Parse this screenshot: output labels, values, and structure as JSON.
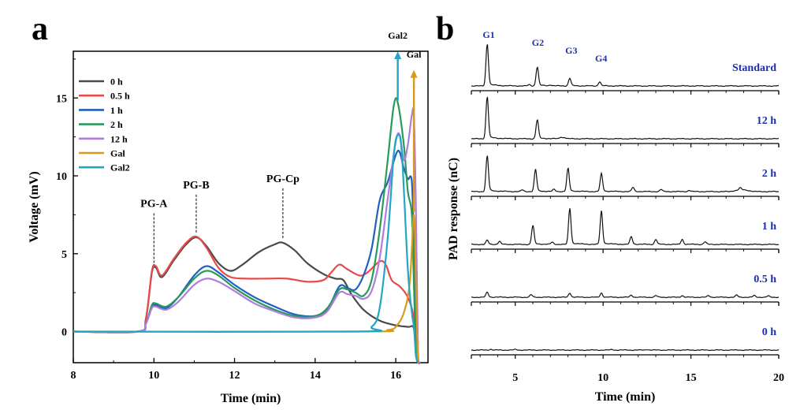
{
  "panel_a_letter": "a",
  "panel_b_letter": "b",
  "chart_data": [
    {
      "type": "line",
      "xlabel": "Time (min)",
      "ylabel": "Voltage (mV)",
      "xlim": [
        8,
        16.8
      ],
      "ylim": [
        -2,
        18
      ],
      "xticks": [
        8,
        10,
        12,
        14,
        16
      ],
      "yticks": [
        0,
        5,
        10,
        15
      ],
      "grid": false,
      "legend_position": "top-left",
      "series": [
        {
          "name": "0 h",
          "color": "#4a4a4a",
          "points": [
            [
              8,
              0
            ],
            [
              9.6,
              0
            ],
            [
              9.8,
              0.8
            ],
            [
              9.95,
              3.8
            ],
            [
              10.05,
              4.1
            ],
            [
              10.2,
              3.5
            ],
            [
              10.5,
              4.6
            ],
            [
              10.8,
              5.6
            ],
            [
              11.05,
              6.05
            ],
            [
              11.3,
              5.5
            ],
            [
              11.6,
              4.4
            ],
            [
              11.9,
              3.9
            ],
            [
              12.2,
              4.3
            ],
            [
              12.6,
              5.1
            ],
            [
              13.0,
              5.6
            ],
            [
              13.2,
              5.7
            ],
            [
              13.5,
              5.2
            ],
            [
              13.8,
              4.4
            ],
            [
              14.2,
              3.7
            ],
            [
              14.5,
              3.4
            ],
            [
              14.7,
              3.3
            ],
            [
              14.9,
              2.4
            ],
            [
              15.2,
              1.4
            ],
            [
              15.6,
              0.7
            ],
            [
              16.0,
              0.4
            ],
            [
              16.3,
              0.3
            ],
            [
              16.45,
              0.2
            ],
            [
              16.5,
              -1.5
            ],
            [
              16.55,
              -2
            ]
          ]
        },
        {
          "name": "0.5 h",
          "color": "#e74a4a",
          "points": [
            [
              8,
              0
            ],
            [
              9.6,
              0
            ],
            [
              9.8,
              0.8
            ],
            [
              9.95,
              3.9
            ],
            [
              10.05,
              4.2
            ],
            [
              10.2,
              3.6
            ],
            [
              10.5,
              4.7
            ],
            [
              10.8,
              5.7
            ],
            [
              11.05,
              6.1
            ],
            [
              11.3,
              5.4
            ],
            [
              11.6,
              4.1
            ],
            [
              11.9,
              3.5
            ],
            [
              12.3,
              3.4
            ],
            [
              12.8,
              3.4
            ],
            [
              13.3,
              3.4
            ],
            [
              13.8,
              3.2
            ],
            [
              14.2,
              3.3
            ],
            [
              14.4,
              3.8
            ],
            [
              14.6,
              4.3
            ],
            [
              14.8,
              4.0
            ],
            [
              15.1,
              3.6
            ],
            [
              15.3,
              3.8
            ],
            [
              15.6,
              4.5
            ],
            [
              15.75,
              4.3
            ],
            [
              15.9,
              3.3
            ],
            [
              16.1,
              2.9
            ],
            [
              16.3,
              2.2
            ],
            [
              16.45,
              0.9
            ],
            [
              16.5,
              -1
            ],
            [
              16.55,
              -2
            ]
          ]
        },
        {
          "name": "1 h",
          "color": "#1f5fbf",
          "points": [
            [
              8,
              0
            ],
            [
              9.6,
              0
            ],
            [
              9.8,
              0.5
            ],
            [
              9.95,
              1.6
            ],
            [
              10.05,
              1.7
            ],
            [
              10.3,
              1.5
            ],
            [
              10.6,
              2.2
            ],
            [
              11.0,
              3.6
            ],
            [
              11.3,
              4.2
            ],
            [
              11.6,
              3.8
            ],
            [
              12.0,
              3.0
            ],
            [
              12.5,
              2.2
            ],
            [
              13.0,
              1.6
            ],
            [
              13.5,
              1.1
            ],
            [
              14.0,
              1.0
            ],
            [
              14.3,
              1.4
            ],
            [
              14.6,
              2.9
            ],
            [
              14.8,
              2.8
            ],
            [
              15.0,
              2.7
            ],
            [
              15.2,
              3.6
            ],
            [
              15.4,
              5.3
            ],
            [
              15.6,
              8.4
            ],
            [
              15.8,
              9.6
            ],
            [
              16.05,
              11.6
            ],
            [
              16.2,
              10.5
            ],
            [
              16.3,
              9.8
            ],
            [
              16.4,
              9.6
            ],
            [
              16.45,
              5
            ],
            [
              16.5,
              -1
            ],
            [
              16.55,
              -2
            ]
          ]
        },
        {
          "name": "2 h",
          "color": "#2a9a5a",
          "points": [
            [
              8,
              0
            ],
            [
              9.6,
              0
            ],
            [
              9.8,
              0.5
            ],
            [
              9.95,
              1.7
            ],
            [
              10.05,
              1.8
            ],
            [
              10.3,
              1.6
            ],
            [
              10.6,
              2.2
            ],
            [
              11.0,
              3.4
            ],
            [
              11.3,
              3.9
            ],
            [
              11.6,
              3.6
            ],
            [
              12.0,
              2.8
            ],
            [
              12.5,
              2.0
            ],
            [
              13.0,
              1.4
            ],
            [
              13.5,
              1.0
            ],
            [
              14.0,
              1.0
            ],
            [
              14.3,
              1.5
            ],
            [
              14.6,
              2.7
            ],
            [
              14.8,
              2.7
            ],
            [
              15.0,
              2.5
            ],
            [
              15.2,
              2.3
            ],
            [
              15.4,
              3.3
            ],
            [
              15.6,
              6.5
            ],
            [
              15.8,
              11.0
            ],
            [
              15.95,
              14.5
            ],
            [
              16.05,
              14.7
            ],
            [
              16.2,
              12.0
            ],
            [
              16.3,
              9.0
            ],
            [
              16.4,
              7.5
            ],
            [
              16.45,
              3
            ],
            [
              16.5,
              -1
            ],
            [
              16.55,
              -2
            ]
          ]
        },
        {
          "name": "12 h",
          "color": "#b07ce0",
          "points": [
            [
              8,
              0
            ],
            [
              9.6,
              0
            ],
            [
              9.8,
              0.5
            ],
            [
              9.95,
              1.5
            ],
            [
              10.05,
              1.6
            ],
            [
              10.3,
              1.4
            ],
            [
              10.6,
              1.9
            ],
            [
              11.0,
              3.0
            ],
            [
              11.3,
              3.4
            ],
            [
              11.6,
              3.2
            ],
            [
              12.0,
              2.6
            ],
            [
              12.5,
              1.8
            ],
            [
              13.0,
              1.3
            ],
            [
              13.5,
              0.9
            ],
            [
              14.0,
              0.9
            ],
            [
              14.3,
              1.3
            ],
            [
              14.6,
              2.5
            ],
            [
              14.8,
              2.4
            ],
            [
              15.0,
              2.3
            ],
            [
              15.2,
              2.1
            ],
            [
              15.4,
              2.6
            ],
            [
              15.6,
              4.7
            ],
            [
              15.8,
              8.5
            ],
            [
              16.0,
              12.2
            ],
            [
              16.1,
              12.6
            ],
            [
              16.2,
              11.0
            ],
            [
              16.3,
              12.0
            ],
            [
              16.4,
              13.9
            ],
            [
              16.45,
              13.8
            ],
            [
              16.5,
              8
            ],
            [
              16.55,
              -1
            ],
            [
              16.6,
              -2
            ]
          ]
        },
        {
          "name": "Gal",
          "color": "#d89a1a",
          "points": [
            [
              8,
              0
            ],
            [
              15.2,
              0
            ],
            [
              15.8,
              0.1
            ],
            [
              16.0,
              0.3
            ],
            [
              16.2,
              1.2
            ],
            [
              16.35,
              3.2
            ],
            [
              16.45,
              7.5
            ],
            [
              16.5,
              3
            ],
            [
              16.55,
              -2
            ]
          ]
        },
        {
          "name": "Gal2",
          "color": "#21a6c6",
          "points": [
            [
              8,
              0
            ],
            [
              15.0,
              0
            ],
            [
              15.4,
              0.3
            ],
            [
              15.6,
              1.5
            ],
            [
              15.8,
              6.0
            ],
            [
              15.95,
              11.3
            ],
            [
              16.05,
              12.6
            ],
            [
              16.15,
              11.5
            ],
            [
              16.3,
              4.0
            ],
            [
              16.4,
              1.2
            ],
            [
              16.45,
              0.3
            ],
            [
              16.5,
              -1.5
            ],
            [
              16.55,
              -2
            ]
          ]
        }
      ],
      "annotations": [
        {
          "text": "PG-A",
          "x": 10.0,
          "y": 4.2,
          "label_y": 8.0
        },
        {
          "text": "PG-B",
          "x": 11.05,
          "y": 6.1,
          "label_y": 9.2
        },
        {
          "text": "PG-Cp",
          "x": 13.2,
          "y": 5.7,
          "label_y": 9.6
        },
        {
          "text": "Gal2",
          "x": 16.05,
          "y": 14.7,
          "label_y": 18.8,
          "color": "#21a6c6"
        },
        {
          "text": "Gal",
          "x": 16.45,
          "y": 7.5,
          "label_y": 17.6,
          "color": "#d89a1a"
        }
      ]
    },
    {
      "type": "line",
      "xlabel": "Time (min)",
      "ylabel": "PAD response (nC)",
      "xlim": [
        2.5,
        20
      ],
      "xticks": [
        5,
        10,
        15,
        20
      ],
      "grid": false,
      "peak_labels": [
        {
          "text": "G1",
          "x": 3.4
        },
        {
          "text": "G2",
          "x": 6.2
        },
        {
          "text": "G3",
          "x": 8.1
        },
        {
          "text": "G4",
          "x": 9.8
        }
      ],
      "traces": [
        {
          "name": "Standard",
          "peaks": [
            [
              3.4,
              1.0
            ],
            [
              6.25,
              0.45
            ],
            [
              8.1,
              0.18
            ],
            [
              9.8,
              0.1
            ],
            [
              5.8,
              0.03
            ],
            [
              7.0,
              0.02
            ]
          ]
        },
        {
          "name": "12 h",
          "peaks": [
            [
              3.4,
              1.0
            ],
            [
              6.25,
              0.45
            ],
            [
              7.6,
              0.04
            ],
            [
              7.8,
              0.03
            ]
          ]
        },
        {
          "name": "2 h",
          "peaks": [
            [
              3.4,
              0.85
            ],
            [
              6.15,
              0.52
            ],
            [
              8.0,
              0.55
            ],
            [
              9.9,
              0.42
            ],
            [
              11.7,
              0.1
            ],
            [
              13.3,
              0.05
            ],
            [
              5.4,
              0.04
            ],
            [
              7.2,
              0.05
            ],
            [
              14.9,
              0.03
            ],
            [
              17.8,
              0.05
            ]
          ]
        },
        {
          "name": "1 h",
          "peaks": [
            [
              3.4,
              0.1
            ],
            [
              4.1,
              0.07
            ],
            [
              6.0,
              0.45
            ],
            [
              8.1,
              0.85
            ],
            [
              9.9,
              0.78
            ],
            [
              11.6,
              0.18
            ],
            [
              13.0,
              0.12
            ],
            [
              14.5,
              0.12
            ],
            [
              15.8,
              0.06
            ],
            [
              7.1,
              0.05
            ]
          ]
        },
        {
          "name": "0.5 h",
          "peaks": [
            [
              3.4,
              0.12
            ],
            [
              5.9,
              0.06
            ],
            [
              8.1,
              0.1
            ],
            [
              9.9,
              0.1
            ],
            [
              11.6,
              0.05
            ],
            [
              13.0,
              0.04
            ],
            [
              14.5,
              0.04
            ],
            [
              16.0,
              0.04
            ],
            [
              17.6,
              0.05
            ],
            [
              18.6,
              0.04
            ],
            [
              19.4,
              0.03
            ]
          ]
        },
        {
          "name": "0 h",
          "peaks": [
            [
              3.6,
              0.02
            ],
            [
              5.0,
              0.015
            ],
            [
              10.5,
              0.015
            ],
            [
              12.5,
              0.015
            ]
          ]
        }
      ]
    }
  ]
}
